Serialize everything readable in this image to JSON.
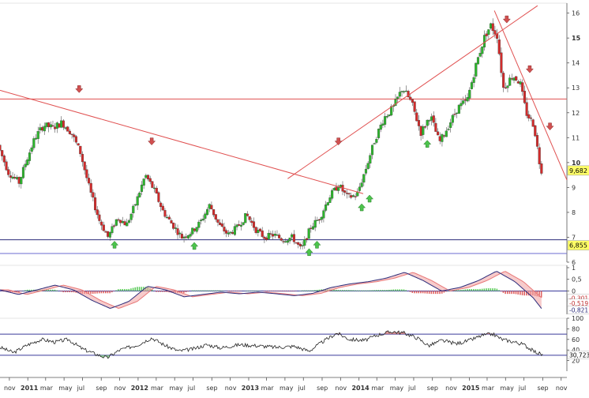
{
  "chart_data": {
    "type": "candlestick",
    "x_axis": {
      "tick_labels": [
        {
          "label": "nov",
          "x": "2010-11-01",
          "bold": false
        },
        {
          "label": "2011",
          "x": "2011-01-01",
          "bold": true
        },
        {
          "label": "mar",
          "x": "2011-03-01",
          "bold": false
        },
        {
          "label": "may",
          "x": "2011-05-01",
          "bold": false
        },
        {
          "label": "jul",
          "x": "2011-07-01",
          "bold": false
        },
        {
          "label": "sep",
          "x": "2011-09-01",
          "bold": false
        },
        {
          "label": "nov",
          "x": "2011-11-01",
          "bold": false
        },
        {
          "label": "2012",
          "x": "2012-01-01",
          "bold": true
        },
        {
          "label": "mar",
          "x": "2012-03-01",
          "bold": false
        },
        {
          "label": "may",
          "x": "2012-05-01",
          "bold": false
        },
        {
          "label": "jul",
          "x": "2012-07-01",
          "bold": false
        },
        {
          "label": "sep",
          "x": "2012-09-01",
          "bold": false
        },
        {
          "label": "nov",
          "x": "2012-11-01",
          "bold": false
        },
        {
          "label": "2013",
          "x": "2013-01-01",
          "bold": true
        },
        {
          "label": "mar",
          "x": "2013-03-01",
          "bold": false
        },
        {
          "label": "may",
          "x": "2013-05-01",
          "bold": false
        },
        {
          "label": "jul",
          "x": "2013-07-01",
          "bold": false
        },
        {
          "label": "sep",
          "x": "2013-09-01",
          "bold": false
        },
        {
          "label": "nov",
          "x": "2013-11-01",
          "bold": false
        },
        {
          "label": "2014",
          "x": "2014-01-01",
          "bold": true
        },
        {
          "label": "mar",
          "x": "2014-03-01",
          "bold": false
        },
        {
          "label": "may",
          "x": "2014-05-01",
          "bold": false
        },
        {
          "label": "jul",
          "x": "2014-07-01",
          "bold": false
        },
        {
          "label": "sep",
          "x": "2014-09-01",
          "bold": false
        },
        {
          "label": "nov",
          "x": "2014-11-01",
          "bold": false
        },
        {
          "label": "2015",
          "x": "2015-01-01",
          "bold": true
        },
        {
          "label": "mar",
          "x": "2015-03-01",
          "bold": false
        },
        {
          "label": "may",
          "x": "2015-05-01",
          "bold": false
        },
        {
          "label": "jul",
          "x": "2015-07-01",
          "bold": false
        },
        {
          "label": "sep",
          "x": "2015-09-01",
          "bold": false
        },
        {
          "label": "nov",
          "x": "2015-11-01",
          "bold": false
        }
      ],
      "range": [
        "2010-10-01",
        "2015-11-20"
      ]
    },
    "price_panel": {
      "y_range": [
        6,
        16.4
      ],
      "y_ticks": [
        "6",
        "7",
        "8",
        "9",
        "10",
        "11",
        "12",
        "13",
        "14",
        "15",
        "16"
      ],
      "y_ticks_bold": [
        "10",
        "15"
      ],
      "last_price_label": "9,682",
      "last_price": 9.682,
      "support_label": "6,855",
      "support_level": 6.9,
      "support_lines": [
        6.9,
        6.35
      ],
      "resistance_line": 12.55,
      "series": [
        {
          "x": "2010-10-01",
          "y": 10.7
        },
        {
          "x": "2010-11-05",
          "y": 9.6
        },
        {
          "x": "2010-12-10",
          "y": 9.2
        },
        {
          "x": "2011-01-01",
          "y": 10.0
        },
        {
          "x": "2011-02-01",
          "y": 11.0
        },
        {
          "x": "2011-03-01",
          "y": 11.5
        },
        {
          "x": "2011-04-01",
          "y": 11.4
        },
        {
          "x": "2011-05-01",
          "y": 11.6
        },
        {
          "x": "2011-06-01",
          "y": 11.2
        },
        {
          "x": "2011-07-01",
          "y": 10.4
        },
        {
          "x": "2011-08-01",
          "y": 8.9
        },
        {
          "x": "2011-09-01",
          "y": 7.7
        },
        {
          "x": "2011-10-01",
          "y": 7.0
        },
        {
          "x": "2011-11-01",
          "y": 7.8
        },
        {
          "x": "2011-12-01",
          "y": 7.5
        },
        {
          "x": "2012-01-01",
          "y": 8.4
        },
        {
          "x": "2012-02-01",
          "y": 9.5
        },
        {
          "x": "2012-03-01",
          "y": 8.9
        },
        {
          "x": "2012-04-01",
          "y": 8.0
        },
        {
          "x": "2012-05-01",
          "y": 7.5
        },
        {
          "x": "2012-06-01",
          "y": 7.0
        },
        {
          "x": "2012-07-01",
          "y": 7.2
        },
        {
          "x": "2012-08-01",
          "y": 7.6
        },
        {
          "x": "2012-09-01",
          "y": 8.3
        },
        {
          "x": "2012-10-01",
          "y": 7.5
        },
        {
          "x": "2012-11-01",
          "y": 7.1
        },
        {
          "x": "2012-12-01",
          "y": 7.4
        },
        {
          "x": "2013-01-01",
          "y": 7.9
        },
        {
          "x": "2013-02-01",
          "y": 7.3
        },
        {
          "x": "2013-03-01",
          "y": 7.0
        },
        {
          "x": "2013-04-01",
          "y": 7.1
        },
        {
          "x": "2013-05-01",
          "y": 6.9
        },
        {
          "x": "2013-06-01",
          "y": 7.0
        },
        {
          "x": "2013-07-01",
          "y": 6.5
        },
        {
          "x": "2013-08-01",
          "y": 7.4
        },
        {
          "x": "2013-09-01",
          "y": 7.8
        },
        {
          "x": "2013-10-01",
          "y": 8.6
        },
        {
          "x": "2013-11-01",
          "y": 9.1
        },
        {
          "x": "2013-12-01",
          "y": 8.6
        },
        {
          "x": "2014-01-01",
          "y": 8.7
        },
        {
          "x": "2014-02-01",
          "y": 9.8
        },
        {
          "x": "2014-03-01",
          "y": 10.9
        },
        {
          "x": "2014-04-01",
          "y": 11.8
        },
        {
          "x": "2014-05-01",
          "y": 12.2
        },
        {
          "x": "2014-06-01",
          "y": 13.0
        },
        {
          "x": "2014-07-01",
          "y": 12.4
        },
        {
          "x": "2014-08-01",
          "y": 11.2
        },
        {
          "x": "2014-09-01",
          "y": 11.9
        },
        {
          "x": "2014-10-01",
          "y": 10.8
        },
        {
          "x": "2014-11-01",
          "y": 11.5
        },
        {
          "x": "2014-12-01",
          "y": 12.2
        },
        {
          "x": "2015-01-01",
          "y": 12.5
        },
        {
          "x": "2015-02-01",
          "y": 14.0
        },
        {
          "x": "2015-03-01",
          "y": 15.1
        },
        {
          "x": "2015-03-20",
          "y": 15.5
        },
        {
          "x": "2015-04-10",
          "y": 15.1
        },
        {
          "x": "2015-05-01",
          "y": 13.0
        },
        {
          "x": "2015-06-01",
          "y": 13.5
        },
        {
          "x": "2015-06-25",
          "y": 13.2
        },
        {
          "x": "2015-07-15",
          "y": 12.0
        },
        {
          "x": "2015-08-10",
          "y": 11.5
        },
        {
          "x": "2015-09-01",
          "y": 9.7
        }
      ],
      "trendlines": [
        {
          "x1": "2010-10-01",
          "y1": 12.9,
          "x2": "2014-01-15",
          "y2": 8.75
        },
        {
          "x1": "2013-05-10",
          "y1": 9.35,
          "x2": "2015-08-15",
          "y2": 16.3
        },
        {
          "x1": "2015-03-25",
          "y1": 16.1,
          "x2": "2015-11-20",
          "y2": 9.3
        }
      ],
      "down_arrows": [
        {
          "x": "2011-06-20",
          "y": 12.9
        },
        {
          "x": "2012-02-15",
          "y": 10.8
        },
        {
          "x": "2013-10-25",
          "y": 10.8
        },
        {
          "x": "2015-05-05",
          "y": 15.7
        },
        {
          "x": "2015-07-20",
          "y": 13.7
        },
        {
          "x": "2015-09-25",
          "y": 11.4
        }
      ],
      "up_arrows": [
        {
          "x": "2011-10-15",
          "y": 6.75
        },
        {
          "x": "2012-07-05",
          "y": 6.7
        },
        {
          "x": "2013-07-20",
          "y": 6.45
        },
        {
          "x": "2013-08-15",
          "y": 6.75
        },
        {
          "x": "2014-01-10",
          "y": 8.25
        },
        {
          "x": "2014-02-05",
          "y": 8.6
        },
        {
          "x": "2014-08-15",
          "y": 10.8
        }
      ]
    },
    "macd_panel": {
      "y_range": [
        -1.0,
        1.1
      ],
      "y_ticks": [
        "1",
        "0,5",
        "0"
      ],
      "value_labels": [
        "-0,301",
        "-0,519",
        "-0,821"
      ],
      "values": [
        -0.301,
        -0.519,
        -0.821
      ],
      "series": [
        {
          "x": "2010-10-01",
          "y": 0.05
        },
        {
          "x": "2010-12-01",
          "y": -0.15
        },
        {
          "x": "2011-02-01",
          "y": 0.05
        },
        {
          "x": "2011-04-01",
          "y": 0.25
        },
        {
          "x": "2011-06-01",
          "y": 0.05
        },
        {
          "x": "2011-08-01",
          "y": -0.4
        },
        {
          "x": "2011-10-01",
          "y": -0.75
        },
        {
          "x": "2011-12-01",
          "y": -0.45
        },
        {
          "x": "2012-02-01",
          "y": 0.2
        },
        {
          "x": "2012-04-01",
          "y": 0.05
        },
        {
          "x": "2012-06-01",
          "y": -0.25
        },
        {
          "x": "2012-08-01",
          "y": -0.15
        },
        {
          "x": "2012-10-01",
          "y": -0.05
        },
        {
          "x": "2012-12-01",
          "y": -0.12
        },
        {
          "x": "2013-02-01",
          "y": -0.05
        },
        {
          "x": "2013-04-01",
          "y": -0.12
        },
        {
          "x": "2013-06-01",
          "y": -0.2
        },
        {
          "x": "2013-08-01",
          "y": -0.1
        },
        {
          "x": "2013-10-01",
          "y": 0.15
        },
        {
          "x": "2013-12-01",
          "y": 0.3
        },
        {
          "x": "2014-02-01",
          "y": 0.4
        },
        {
          "x": "2014-04-01",
          "y": 0.55
        },
        {
          "x": "2014-06-01",
          "y": 0.8
        },
        {
          "x": "2014-08-01",
          "y": 0.45
        },
        {
          "x": "2014-10-01",
          "y": 0.0
        },
        {
          "x": "2014-12-01",
          "y": 0.15
        },
        {
          "x": "2015-02-01",
          "y": 0.45
        },
        {
          "x": "2015-04-01",
          "y": 0.85
        },
        {
          "x": "2015-06-01",
          "y": 0.4
        },
        {
          "x": "2015-08-01",
          "y": -0.3
        },
        {
          "x": "2015-09-01",
          "y": -0.82
        }
      ]
    },
    "rsi_panel": {
      "y_range": [
        0,
        100
      ],
      "y_ticks": [
        "100",
        "80",
        "60",
        "40",
        "20"
      ],
      "current_label": "30,723",
      "current": 30.723,
      "bands": [
        70,
        30
      ],
      "series": [
        {
          "x": "2010-10-01",
          "y": 45
        },
        {
          "x": "2010-11-15",
          "y": 35
        },
        {
          "x": "2011-01-01",
          "y": 50
        },
        {
          "x": "2011-02-15",
          "y": 60
        },
        {
          "x": "2011-04-01",
          "y": 55
        },
        {
          "x": "2011-05-15",
          "y": 60
        },
        {
          "x": "2011-07-01",
          "y": 42
        },
        {
          "x": "2011-08-15",
          "y": 32
        },
        {
          "x": "2011-09-20",
          "y": 25
        },
        {
          "x": "2011-11-01",
          "y": 40
        },
        {
          "x": "2012-01-01",
          "y": 50
        },
        {
          "x": "2012-02-15",
          "y": 63
        },
        {
          "x": "2012-04-01",
          "y": 48
        },
        {
          "x": "2012-05-15",
          "y": 38
        },
        {
          "x": "2012-07-01",
          "y": 42
        },
        {
          "x": "2012-08-15",
          "y": 50
        },
        {
          "x": "2012-10-01",
          "y": 44
        },
        {
          "x": "2012-12-01",
          "y": 50
        },
        {
          "x": "2013-02-01",
          "y": 48
        },
        {
          "x": "2013-04-01",
          "y": 45
        },
        {
          "x": "2013-06-01",
          "y": 47
        },
        {
          "x": "2013-07-20",
          "y": 38
        },
        {
          "x": "2013-09-01",
          "y": 55
        },
        {
          "x": "2013-10-20",
          "y": 72
        },
        {
          "x": "2013-12-01",
          "y": 60
        },
        {
          "x": "2014-01-20",
          "y": 58
        },
        {
          "x": "2014-03-01",
          "y": 68
        },
        {
          "x": "2014-04-20",
          "y": 75
        },
        {
          "x": "2014-06-01",
          "y": 72
        },
        {
          "x": "2014-07-15",
          "y": 62
        },
        {
          "x": "2014-08-20",
          "y": 48
        },
        {
          "x": "2014-10-01",
          "y": 58
        },
        {
          "x": "2014-11-20",
          "y": 52
        },
        {
          "x": "2015-01-01",
          "y": 58
        },
        {
          "x": "2015-02-15",
          "y": 68
        },
        {
          "x": "2015-03-20",
          "y": 70
        },
        {
          "x": "2015-04-20",
          "y": 60
        },
        {
          "x": "2015-06-01",
          "y": 55
        },
        {
          "x": "2015-07-01",
          "y": 50
        },
        {
          "x": "2015-08-01",
          "y": 38
        },
        {
          "x": "2015-09-01",
          "y": 30.7
        }
      ]
    },
    "colors": {
      "up_candle": "#2db52d",
      "down_candle": "#d12b2b",
      "trendline": "#e05050",
      "support_line": "#2c2c7a",
      "band_line": "#3a3a9a",
      "macd_signal": "#e87878",
      "macd_fast": "#2c2c7a",
      "macd_hist_up": "#5cc95c",
      "macd_hist_down": "#e06060",
      "rsi_line": "#222222",
      "rsi_fill_over": "#c87070",
      "price_label_bg": "#ffff66",
      "axis_text": "#333333"
    }
  }
}
